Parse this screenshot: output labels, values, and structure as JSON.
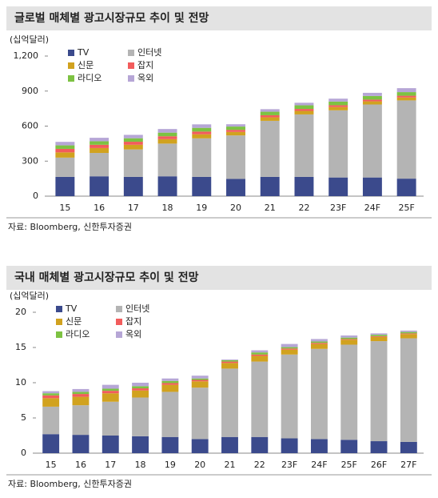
{
  "chart_data": [
    {
      "type": "bar",
      "stacked": true,
      "title": "글로벌 매체별 광고시장규모 추이 및 전망",
      "y_label": "(십억달러)",
      "source": "자료: Bloomberg, 신한투자증권",
      "legend": "upper left",
      "categories": [
        "15",
        "16",
        "17",
        "18",
        "19",
        "20",
        "21",
        "22",
        "23F",
        "24F",
        "25F"
      ],
      "ylim": [
        0,
        1200
      ],
      "yticks": [
        0,
        300,
        600,
        900,
        {
          "value": 1200,
          "label": "1,200"
        }
      ],
      "series": [
        {
          "name": "TV",
          "color": "#3b4a8c",
          "values": [
            165,
            170,
            165,
            170,
            165,
            148,
            165,
            165,
            160,
            160,
            150
          ]
        },
        {
          "name": "인터넷",
          "color": "#b4b4b4",
          "values": [
            165,
            200,
            235,
            280,
            330,
            372,
            480,
            535,
            575,
            625,
            670
          ]
        },
        {
          "name": "신문",
          "color": "#d1a21f",
          "values": [
            45,
            42,
            40,
            38,
            35,
            30,
            30,
            30,
            28,
            27,
            25
          ]
        },
        {
          "name": "잡지",
          "color": "#f25c5c",
          "values": [
            30,
            28,
            26,
            25,
            23,
            18,
            18,
            17,
            16,
            15,
            15
          ]
        },
        {
          "name": "라디오",
          "color": "#7dc242",
          "values": [
            30,
            30,
            30,
            31,
            32,
            28,
            30,
            31,
            31,
            31,
            31
          ]
        },
        {
          "name": "옥외",
          "color": "#b6a6d6",
          "values": [
            30,
            30,
            29,
            31,
            30,
            20,
            22,
            22,
            25,
            27,
            34
          ]
        }
      ]
    },
    {
      "type": "bar",
      "stacked": true,
      "title": "국내 매체별 광고시장규모 추이 및 전망",
      "y_label": "(십억달러)",
      "source": "자료: Bloomberg, 신한투자증권",
      "legend": "upper left",
      "categories": [
        "15",
        "16",
        "17",
        "18",
        "19",
        "20",
        "21",
        "22",
        "23F",
        "24F",
        "25F",
        "26F",
        "27F"
      ],
      "ylim": [
        0,
        20
      ],
      "yticks": [
        0,
        5,
        10,
        15,
        20
      ],
      "series": [
        {
          "name": "TV",
          "color": "#3b4a8c",
          "values": [
            2.7,
            2.6,
            2.5,
            2.4,
            2.3,
            2.0,
            2.3,
            2.3,
            2.1,
            2.0,
            1.9,
            1.7,
            1.6
          ]
        },
        {
          "name": "인터넷",
          "color": "#b4b4b4",
          "values": [
            3.9,
            4.2,
            4.8,
            5.5,
            6.4,
            7.3,
            9.7,
            10.7,
            11.9,
            12.8,
            13.5,
            14.2,
            14.7
          ]
        },
        {
          "name": "신문",
          "color": "#d1a21f",
          "values": [
            1.2,
            1.2,
            1.2,
            1.0,
            1.0,
            0.9,
            0.8,
            0.8,
            0.7,
            0.7,
            0.7,
            0.6,
            0.6
          ]
        },
        {
          "name": "잡지",
          "color": "#f25c5c",
          "values": [
            0.4,
            0.4,
            0.35,
            0.3,
            0.25,
            0.2,
            0.2,
            0.2,
            0.15,
            0.15,
            0.1,
            0.1,
            0.1
          ]
        },
        {
          "name": "라디오",
          "color": "#7dc242",
          "values": [
            0.3,
            0.3,
            0.3,
            0.3,
            0.3,
            0.2,
            0.2,
            0.3,
            0.2,
            0.2,
            0.2,
            0.2,
            0.2
          ]
        },
        {
          "name": "옥외",
          "color": "#b6a6d6",
          "values": [
            0.3,
            0.4,
            0.55,
            0.5,
            0.35,
            0.4,
            0.1,
            0.3,
            0.45,
            0.35,
            0.3,
            0.2,
            0.2
          ]
        }
      ]
    }
  ]
}
